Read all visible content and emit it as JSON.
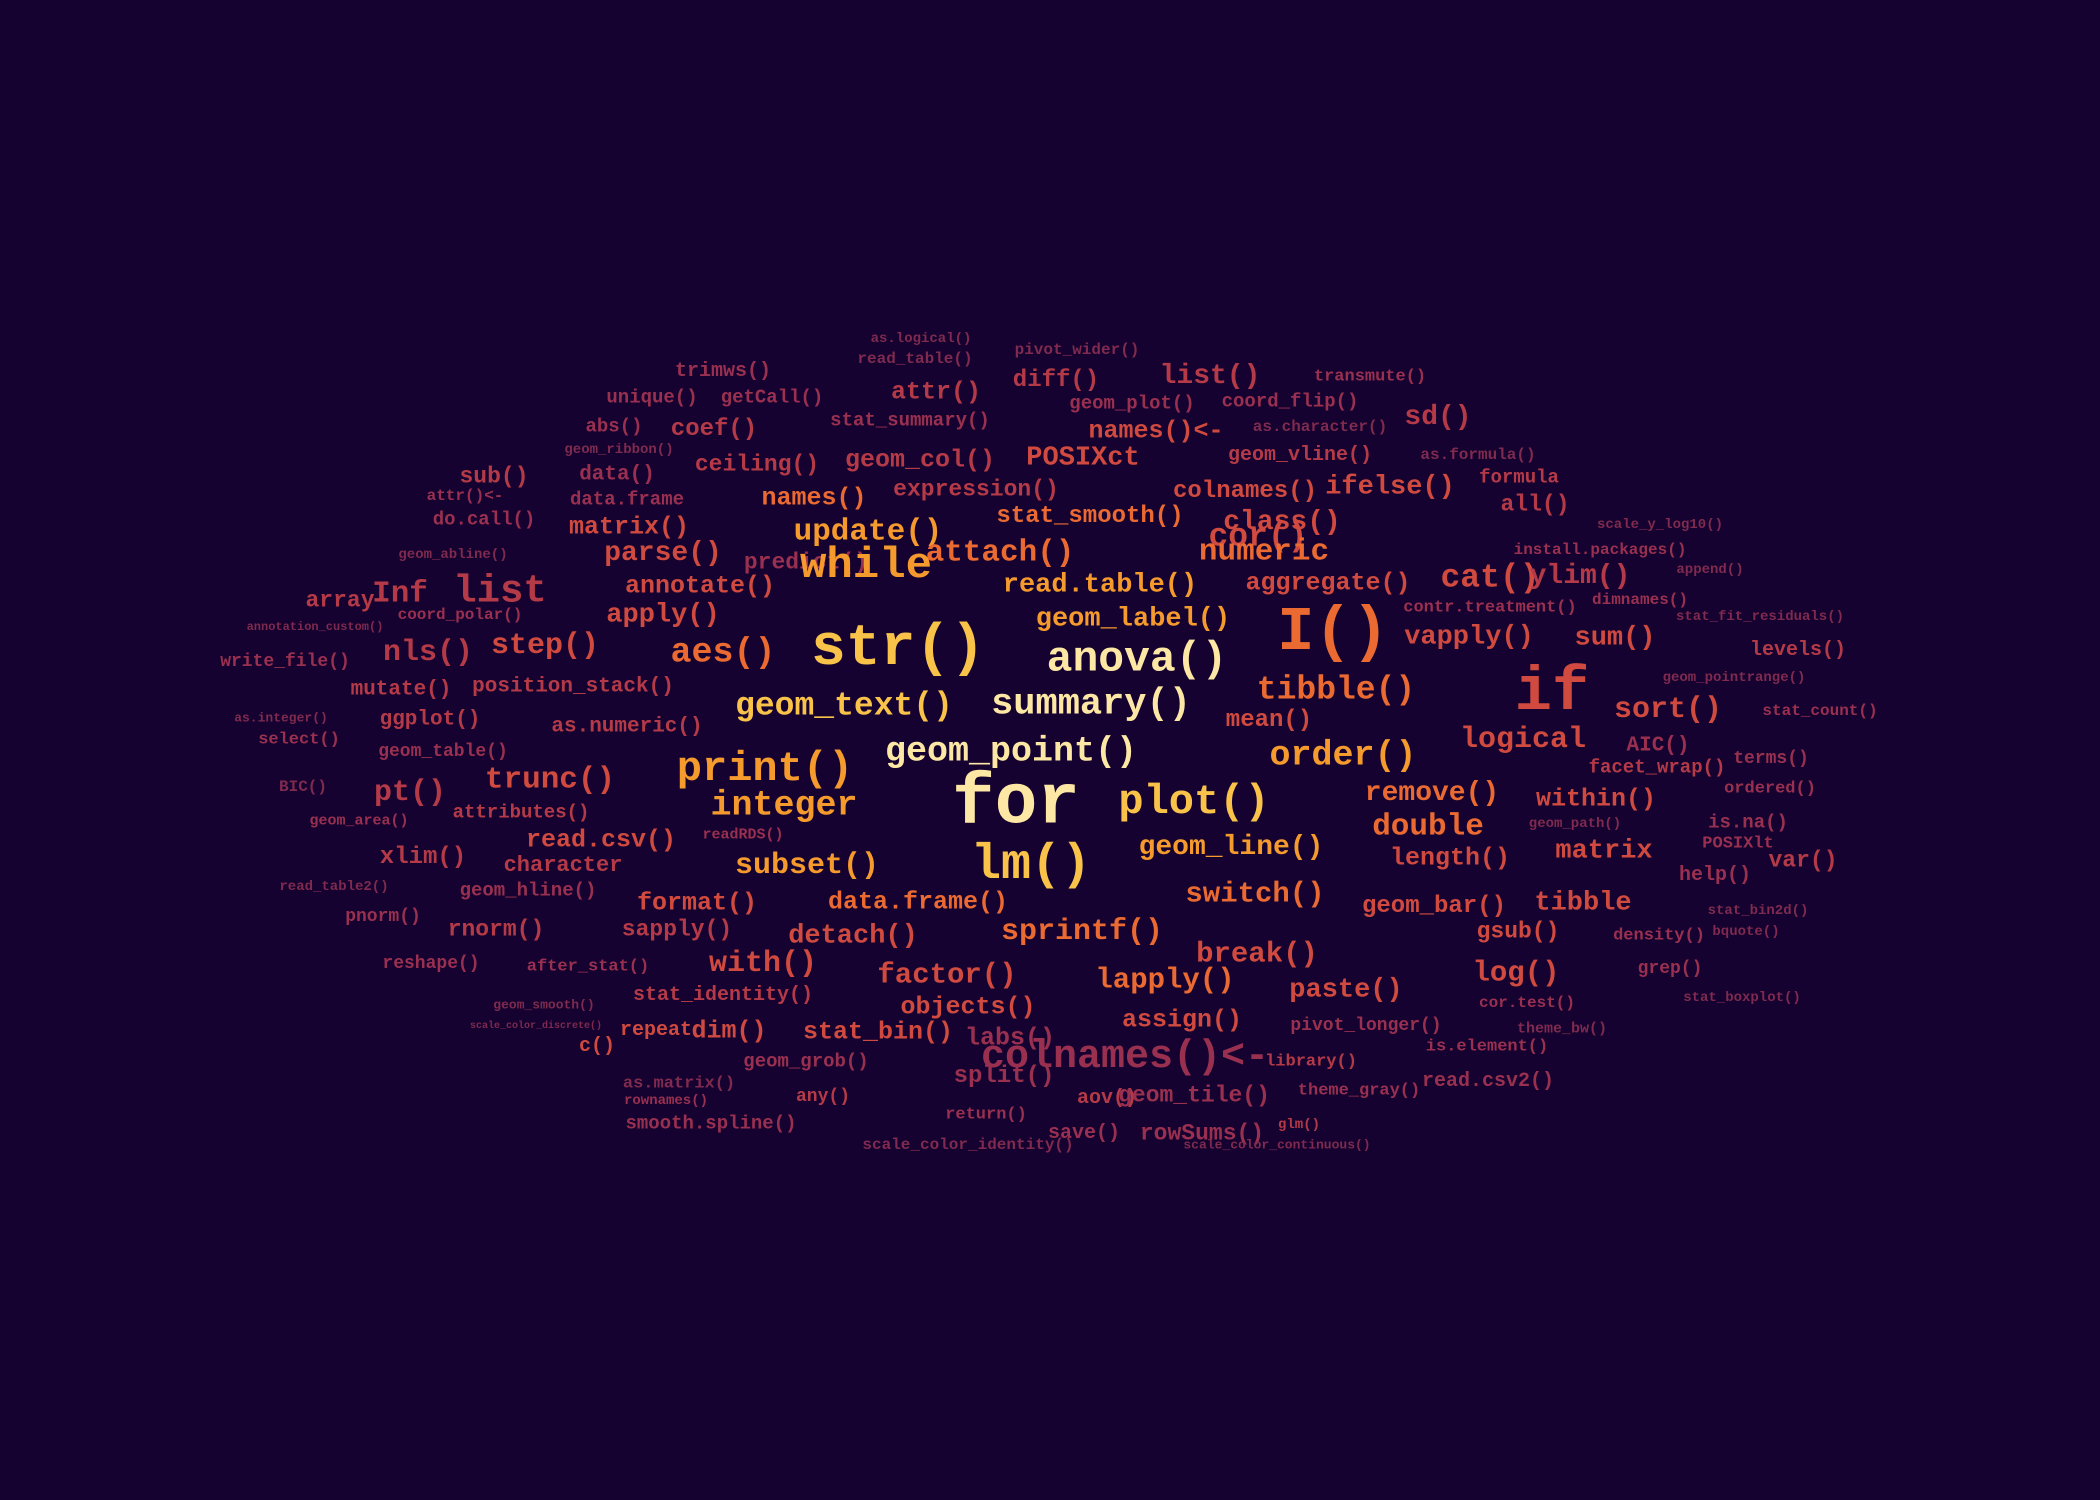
{
  "colors": {
    "background": "#150230",
    "tier1": "#fde7a4",
    "tier2": "#f9c34a",
    "tier3": "#f59a2c",
    "tier4": "#ea6a32",
    "tier5": "#d04a3f",
    "tier6": "#b53a48",
    "tier7": "#9a3050",
    "tier8": "#7f2a4e"
  },
  "words": [
    {
      "text": "as.logical()",
      "tier": 8
    },
    {
      "text": "pivot_wider()",
      "tier": 8
    },
    {
      "text": "read_table()",
      "tier": 8
    },
    {
      "text": "trimws()",
      "tier": 7
    },
    {
      "text": "diff()",
      "tier": 6
    },
    {
      "text": "list()",
      "tier": 6
    },
    {
      "text": "transmute()",
      "tier": 7
    },
    {
      "text": "attr()",
      "tier": 6
    },
    {
      "text": "unique()",
      "tier": 7
    },
    {
      "text": "getCall()",
      "tier": 7
    },
    {
      "text": "geom_plot()",
      "tier": 7
    },
    {
      "text": "coord_flip()",
      "tier": 7
    },
    {
      "text": "sd()",
      "tier": 6
    },
    {
      "text": "abs()",
      "tier": 7
    },
    {
      "text": "coef()",
      "tier": 6
    },
    {
      "text": "stat_summary()",
      "tier": 7
    },
    {
      "text": "names()<-",
      "tier": 5
    },
    {
      "text": "as.character()",
      "tier": 8
    },
    {
      "text": "geom_ribbon()",
      "tier": 8
    },
    {
      "text": "ceiling()",
      "tier": 6
    },
    {
      "text": "geom_col()",
      "tier": 6
    },
    {
      "text": "POSIXct",
      "tier": 5
    },
    {
      "text": "geom_vline()",
      "tier": 6
    },
    {
      "text": "as.formula()",
      "tier": 8
    },
    {
      "text": "sub()",
      "tier": 6
    },
    {
      "text": "data()",
      "tier": 7
    },
    {
      "text": "expression()",
      "tier": 6
    },
    {
      "text": "colnames()",
      "tier": 5
    },
    {
      "text": "ifelse()",
      "tier": 5
    },
    {
      "text": "formula",
      "tier": 6
    },
    {
      "text": "attr()<-",
      "tier": 7
    },
    {
      "text": "data.frame",
      "tier": 7
    },
    {
      "text": "names()",
      "tier": 4
    },
    {
      "text": "all()",
      "tier": 6
    },
    {
      "text": "do.call()",
      "tier": 7
    },
    {
      "text": "matrix()",
      "tier": 5
    },
    {
      "text": "stat_smooth()",
      "tier": 4
    },
    {
      "text": "class()",
      "tier": 5
    },
    {
      "text": "scale_y_log10()",
      "tier": 8
    },
    {
      "text": "update()",
      "tier": 3
    },
    {
      "text": "cor()",
      "tier": 5
    },
    {
      "text": "geom_abline()",
      "tier": 8
    },
    {
      "text": "parse()",
      "tier": 5
    },
    {
      "text": "predict()",
      "tier": 7
    },
    {
      "text": "attach()",
      "tier": 4
    },
    {
      "text": "numeric",
      "tier": 4
    },
    {
      "text": "install.packages()",
      "tier": 7
    },
    {
      "text": "array",
      "tier": 6
    },
    {
      "text": "Inf",
      "tier": 6
    },
    {
      "text": "list",
      "tier": 6
    },
    {
      "text": "annotate()",
      "tier": 5
    },
    {
      "text": "while",
      "tier": 3
    },
    {
      "text": "read.table()",
      "tier": 3
    },
    {
      "text": "aggregate()",
      "tier": 5
    },
    {
      "text": "cat()",
      "tier": 5
    },
    {
      "text": "ylim()",
      "tier": 6
    },
    {
      "text": "append()",
      "tier": 8
    },
    {
      "text": "coord_polar()",
      "tier": 7
    },
    {
      "text": "contr.treatment()",
      "tier": 7
    },
    {
      "text": "dimnames()",
      "tier": 7
    },
    {
      "text": "annotation_custom()",
      "tier": 8
    },
    {
      "text": "apply()",
      "tier": 5
    },
    {
      "text": "geom_label()",
      "tier": 3
    },
    {
      "text": "stat_fit_residuals()",
      "tier": 8
    },
    {
      "text": "str()",
      "tier": 2
    },
    {
      "text": "I()",
      "tier": 4
    },
    {
      "text": "vapply()",
      "tier": 5
    },
    {
      "text": "sum()",
      "tier": 5
    },
    {
      "text": "write_file()",
      "tier": 7
    },
    {
      "text": "nls()",
      "tier": 6
    },
    {
      "text": "step()",
      "tier": 5
    },
    {
      "text": "aes()",
      "tier": 4
    },
    {
      "text": "anova()",
      "tier": 1
    },
    {
      "text": "levels()",
      "tier": 6
    },
    {
      "text": "if",
      "tier": 5
    },
    {
      "text": "geom_pointrange()",
      "tier": 8
    },
    {
      "text": "mutate()",
      "tier": 6
    },
    {
      "text": "position_stack()",
      "tier": 6
    },
    {
      "text": "tibble()",
      "tier": 4
    },
    {
      "text": "geom_text()",
      "tier": 2
    },
    {
      "text": "summary()",
      "tier": 1
    },
    {
      "text": "sort()",
      "tier": 5
    },
    {
      "text": "stat_count()",
      "tier": 7
    },
    {
      "text": "as.integer()",
      "tier": 8
    },
    {
      "text": "ggplot()",
      "tier": 6
    },
    {
      "text": "as.numeric()",
      "tier": 6
    },
    {
      "text": "mean()",
      "tier": 5
    },
    {
      "text": "logical",
      "tier": 5
    },
    {
      "text": "select()",
      "tier": 7
    },
    {
      "text": "AIC()",
      "tier": 7
    },
    {
      "text": "terms()",
      "tier": 7
    },
    {
      "text": "geom_table()",
      "tier": 7
    },
    {
      "text": "geom_point()",
      "tier": 1
    },
    {
      "text": "order()",
      "tier": 3
    },
    {
      "text": "print()",
      "tier": 3
    },
    {
      "text": "facet_wrap()",
      "tier": 6
    },
    {
      "text": "BIC()",
      "tier": 8
    },
    {
      "text": "pt()",
      "tier": 6
    },
    {
      "text": "trunc()",
      "tier": 5
    },
    {
      "text": "ordered()",
      "tier": 7
    },
    {
      "text": "for",
      "tier": 1
    },
    {
      "text": "plot()",
      "tier": 2
    },
    {
      "text": "remove()",
      "tier": 4
    },
    {
      "text": "within()",
      "tier": 5
    },
    {
      "text": "integer",
      "tier": 3
    },
    {
      "text": "attributes()",
      "tier": 6
    },
    {
      "text": "geom_area()",
      "tier": 7
    },
    {
      "text": "is.na()",
      "tier": 7
    },
    {
      "text": "double",
      "tier": 4
    },
    {
      "text": "geom_path()",
      "tier": 8
    },
    {
      "text": "readRDS()",
      "tier": 7
    },
    {
      "text": "read.csv()",
      "tier": 5
    },
    {
      "text": "POSIXlt",
      "tier": 7
    },
    {
      "text": "xlim()",
      "tier": 6
    },
    {
      "text": "geom_line()",
      "tier": 3
    },
    {
      "text": "lm()",
      "tier": 2
    },
    {
      "text": "var()",
      "tier": 6
    },
    {
      "text": "subset()",
      "tier": 3
    },
    {
      "text": "length()",
      "tier": 5
    },
    {
      "text": "matrix",
      "tier": 5
    },
    {
      "text": "character",
      "tier": 6
    },
    {
      "text": "help()",
      "tier": 7
    },
    {
      "text": "read_table2()",
      "tier": 8
    },
    {
      "text": "geom_hline()",
      "tier": 7
    },
    {
      "text": "switch()",
      "tier": 4
    },
    {
      "text": "format()",
      "tier": 5
    },
    {
      "text": "data.frame()",
      "tier": 4
    },
    {
      "text": "geom_bar()",
      "tier": 5
    },
    {
      "text": "tibble",
      "tier": 5
    },
    {
      "text": "stat_bin2d()",
      "tier": 8
    },
    {
      "text": "pnorm()",
      "tier": 7
    },
    {
      "text": "rnorm()",
      "tier": 6
    },
    {
      "text": "sapply()",
      "tier": 6
    },
    {
      "text": "detach()",
      "tier": 5
    },
    {
      "text": "sprintf()",
      "tier": 4
    },
    {
      "text": "gsub()",
      "tier": 5
    },
    {
      "text": "density()",
      "tier": 7
    },
    {
      "text": "bquote()",
      "tier": 8
    },
    {
      "text": "reshape()",
      "tier": 7
    },
    {
      "text": "after_stat()",
      "tier": 7
    },
    {
      "text": "with()",
      "tier": 5
    },
    {
      "text": "factor()",
      "tier": 5
    },
    {
      "text": "break()",
      "tier": 5
    },
    {
      "text": "log()",
      "tier": 5
    },
    {
      "text": "grep()",
      "tier": 7
    },
    {
      "text": "lapply()",
      "tier": 4
    },
    {
      "text": "paste()",
      "tier": 5
    },
    {
      "text": "geom_smooth()",
      "tier": 8
    },
    {
      "text": "stat_identity()",
      "tier": 6
    },
    {
      "text": "objects()",
      "tier": 5
    },
    {
      "text": "cor.test()",
      "tier": 7
    },
    {
      "text": "stat_boxplot()",
      "tier": 8
    },
    {
      "text": "scale_color_discrete()",
      "tier": 8
    },
    {
      "text": "assign()",
      "tier": 5
    },
    {
      "text": "pivot_longer()",
      "tier": 7
    },
    {
      "text": "theme_bw()",
      "tier": 8
    },
    {
      "text": "repeat",
      "tier": 5
    },
    {
      "text": "dim()",
      "tier": 5
    },
    {
      "text": "stat_bin()",
      "tier": 5
    },
    {
      "text": "labs()",
      "tier": 7
    },
    {
      "text": "is.element()",
      "tier": 7
    },
    {
      "text": "c()",
      "tier": 5
    },
    {
      "text": "colnames()<-",
      "tier": 7
    },
    {
      "text": "geom_grob()",
      "tier": 7
    },
    {
      "text": "library()",
      "tier": 6
    },
    {
      "text": "split()",
      "tier": 7
    },
    {
      "text": "read.csv2()",
      "tier": 7
    },
    {
      "text": "as.matrix()",
      "tier": 8
    },
    {
      "text": "rownames()",
      "tier": 7
    },
    {
      "text": "any()",
      "tier": 6
    },
    {
      "text": "aov()",
      "tier": 6
    },
    {
      "text": "geom_tile()",
      "tier": 7
    },
    {
      "text": "theme_gray()",
      "tier": 7
    },
    {
      "text": "return()",
      "tier": 7
    },
    {
      "text": "smooth.spline()",
      "tier": 7
    },
    {
      "text": "glm()",
      "tier": 6
    },
    {
      "text": "save()",
      "tier": 7
    },
    {
      "text": "rowSums()",
      "tier": 7
    },
    {
      "text": "scale_color_identity()",
      "tier": 8
    },
    {
      "text": "scale_color_continuous()",
      "tier": 8
    }
  ]
}
